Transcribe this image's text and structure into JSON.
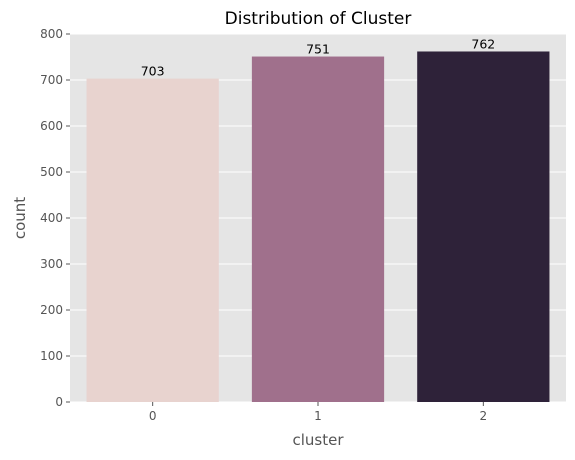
{
  "chart_data": {
    "type": "bar",
    "title": "Distribution of Cluster",
    "xlabel": "cluster",
    "ylabel": "count",
    "categories": [
      "0",
      "1",
      "2"
    ],
    "values": [
      703,
      751,
      762
    ],
    "data_labels": [
      "703",
      "751",
      "762"
    ],
    "ylim": [
      0,
      800
    ],
    "yticks": [
      0,
      100,
      200,
      300,
      400,
      500,
      600,
      700,
      800
    ],
    "grid": true,
    "legend": "none",
    "colors": {
      "plot_background": "#e5e5e5",
      "bars": [
        "#e8d3cf",
        "#a0708c",
        "#2e2239"
      ],
      "grid": "#ffffff",
      "text": "#555555"
    }
  }
}
